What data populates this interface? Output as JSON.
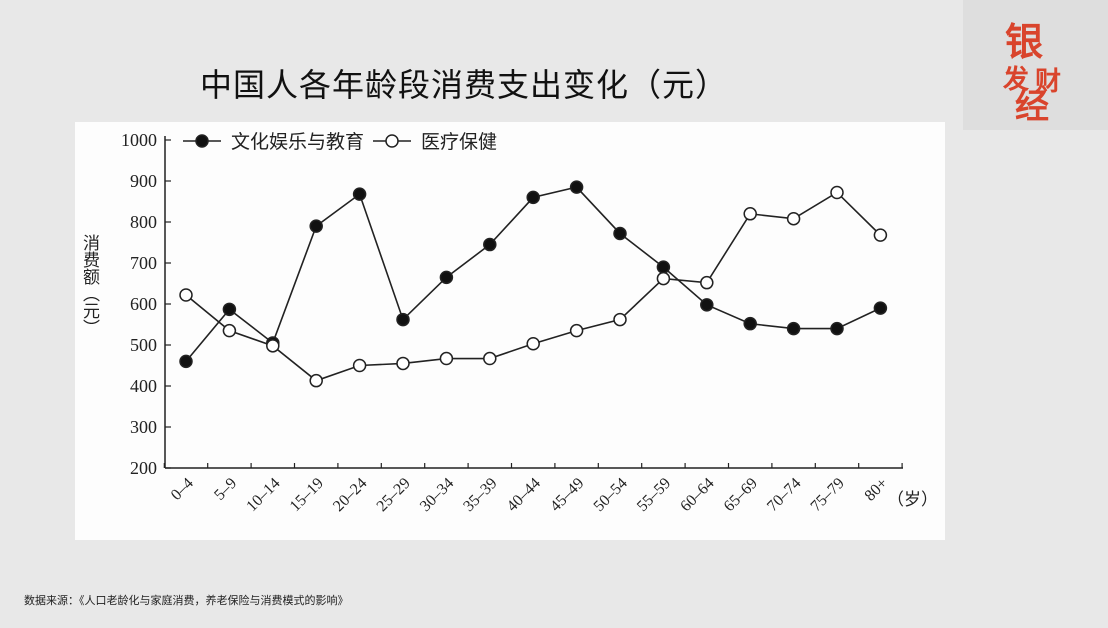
{
  "title": "中国人各年龄段消费支出变化（元）",
  "source": "数据来源：《人口老龄化与家庭消费，养老保险与消费模式的影响》",
  "logo_text": "银发财经",
  "colors": {
    "background": "#e8e8e8",
    "line": "#222222",
    "logo": "#d9442c"
  },
  "chart_data": {
    "type": "line",
    "ylabel": "消费额（元）",
    "xunit": "（岁）",
    "ylim": [
      200,
      1000
    ],
    "yticks": [
      200,
      300,
      400,
      500,
      600,
      700,
      800,
      900,
      1000
    ],
    "legend_placement": "top",
    "grid": false,
    "categories": [
      "0–4",
      "5–9",
      "10–14",
      "15–19",
      "20–24",
      "25–29",
      "30–34",
      "35–39",
      "40–44",
      "45–49",
      "50–54",
      "55–59",
      "60–64",
      "65–69",
      "70–74",
      "75–79",
      "80+"
    ],
    "series": [
      {
        "name": "文化娱乐与教育",
        "marker": "filled-circle",
        "values": [
          460,
          587,
          505,
          790,
          868,
          562,
          665,
          745,
          860,
          885,
          772,
          690,
          598,
          552,
          540,
          540,
          590
        ]
      },
      {
        "name": "医疗保健",
        "marker": "open-circle",
        "values": [
          622,
          535,
          498,
          413,
          450,
          455,
          467,
          467,
          503,
          535,
          562,
          662,
          652,
          820,
          808,
          872,
          768
        ]
      }
    ]
  }
}
